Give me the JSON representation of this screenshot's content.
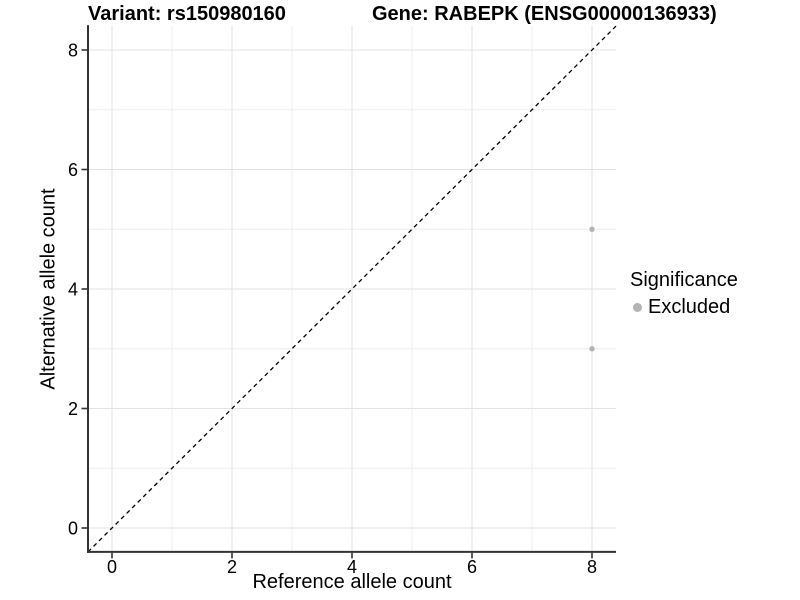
{
  "figure": {
    "title_variant": "Variant: rs150980160",
    "title_gene": "Gene: RABEPK (ENSG00000136933)"
  },
  "chart_data": {
    "type": "scatter",
    "title": "Variant: rs150980160 | Gene: RABEPK (ENSG00000136933)",
    "xlabel": "Reference allele count",
    "ylabel": "Alternative allele count",
    "xlim": [
      -0.4,
      8.4
    ],
    "ylim": [
      -0.4,
      8.4
    ],
    "xticks": [
      0,
      2,
      4,
      6,
      8
    ],
    "yticks": [
      0,
      2,
      4,
      6,
      8
    ],
    "minor_gridlines": [
      1,
      3,
      5,
      7
    ],
    "grid": "on",
    "reference_line": {
      "type": "identity",
      "style": "dashed",
      "color": "#000000"
    },
    "series": [
      {
        "name": "Excluded",
        "color": "#b3b3b3",
        "points": [
          {
            "x": 8,
            "y": 5
          },
          {
            "x": 8,
            "y": 3
          }
        ]
      }
    ],
    "legend": {
      "title": "Significance",
      "position": "right",
      "entries": [
        {
          "label": "Excluded",
          "color": "#b3b3b3",
          "marker": "circle"
        }
      ]
    },
    "colors": {
      "background": "#ffffff",
      "grid_major": "#e3e3e3",
      "grid_minor": "#eeeeee",
      "axis_line": "#333333",
      "tick_mark": "#333333",
      "tick_label": "#000000"
    }
  }
}
